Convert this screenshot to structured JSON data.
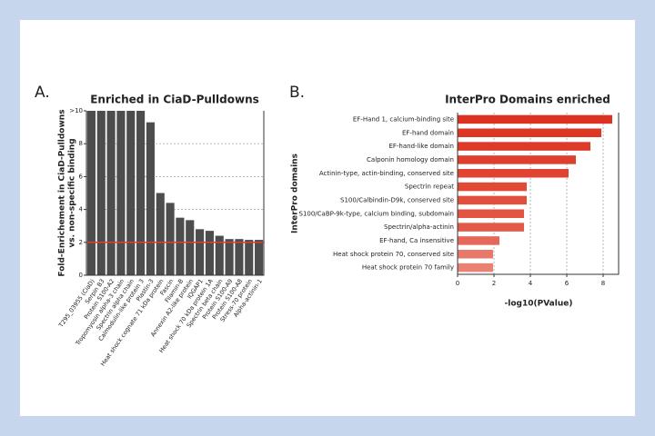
{
  "chart_data": [
    {
      "type": "bar",
      "panel": "A.",
      "title": "Enriched in CiaD-Pulldowns",
      "ylabel": [
        "Fold-Enrichement in CiaD-Pulldowns",
        "vs. non-specific binding"
      ],
      "categories": [
        "T295_03955 (CiaD)",
        "Serpin B3",
        "Protein S100-A2",
        "Tropomyosin alpha-3 chain",
        "Spectrin alpha chain",
        "Calmodulin-like protein 3",
        "Plastin-3",
        "Heat shock cognate 71 kDa protein",
        "Fascin",
        "Filamin-B",
        "Annexin A2-like protein",
        "IQGAP1",
        "Heat shock 70 kDa protein 1A",
        "Spectrin beta chain",
        "Protein S100-A9",
        "Protein S100-A8",
        "Stress-70 protein",
        "Alpha-actinin-1"
      ],
      "values": [
        10,
        10,
        10,
        10,
        10,
        10,
        9.3,
        5.0,
        4.4,
        3.5,
        3.35,
        2.8,
        2.7,
        2.4,
        2.2,
        2.2,
        2.15,
        2.15
      ],
      "color": "#4d4d4d",
      "ylim": [
        0,
        10
      ],
      "yticks": [
        0,
        2,
        4,
        6,
        8,
        {
          "value": 10,
          "label": ">10"
        }
      ],
      "grid": true,
      "reference_line": {
        "value": 2,
        "color": "#e0402a"
      }
    },
    {
      "type": "barh",
      "panel": "B.",
      "title": "InterPro Domains enriched",
      "xlabel": "-log10(PValue)",
      "ylabel": "InterPro domains",
      "categories": [
        "EF-Hand 1, calcium-binding site",
        "EF-hand domain",
        "EF-hand-like domain",
        "Calponin homology domain",
        "Actinin-type, actin-binding, conserved site",
        "Spectrin repeat",
        "S100/Calbindin-D9k, conserved site",
        "S100/CaBP-9k-type, calcium binding, subdomain",
        "Spectrin/alpha-actinin",
        "EF-hand, Ca insensitive",
        "Heat shock protein 70, conserved site",
        "Heat shock protein 70 family"
      ],
      "values": [
        8.5,
        7.9,
        7.3,
        6.5,
        6.1,
        3.8,
        3.8,
        3.65,
        3.65,
        2.3,
        1.95,
        1.95
      ],
      "colors": [
        "#dc3222",
        "#dd3625",
        "#de3a29",
        "#df3f2d",
        "#e04331",
        "#e14a37",
        "#e2503d",
        "#e35543",
        "#e45a48",
        "#e6685a",
        "#e8786a",
        "#ea8173"
      ],
      "xlim": [
        0,
        8.85
      ],
      "xticks": [
        0,
        2,
        4,
        6,
        8
      ],
      "grid": true
    }
  ]
}
